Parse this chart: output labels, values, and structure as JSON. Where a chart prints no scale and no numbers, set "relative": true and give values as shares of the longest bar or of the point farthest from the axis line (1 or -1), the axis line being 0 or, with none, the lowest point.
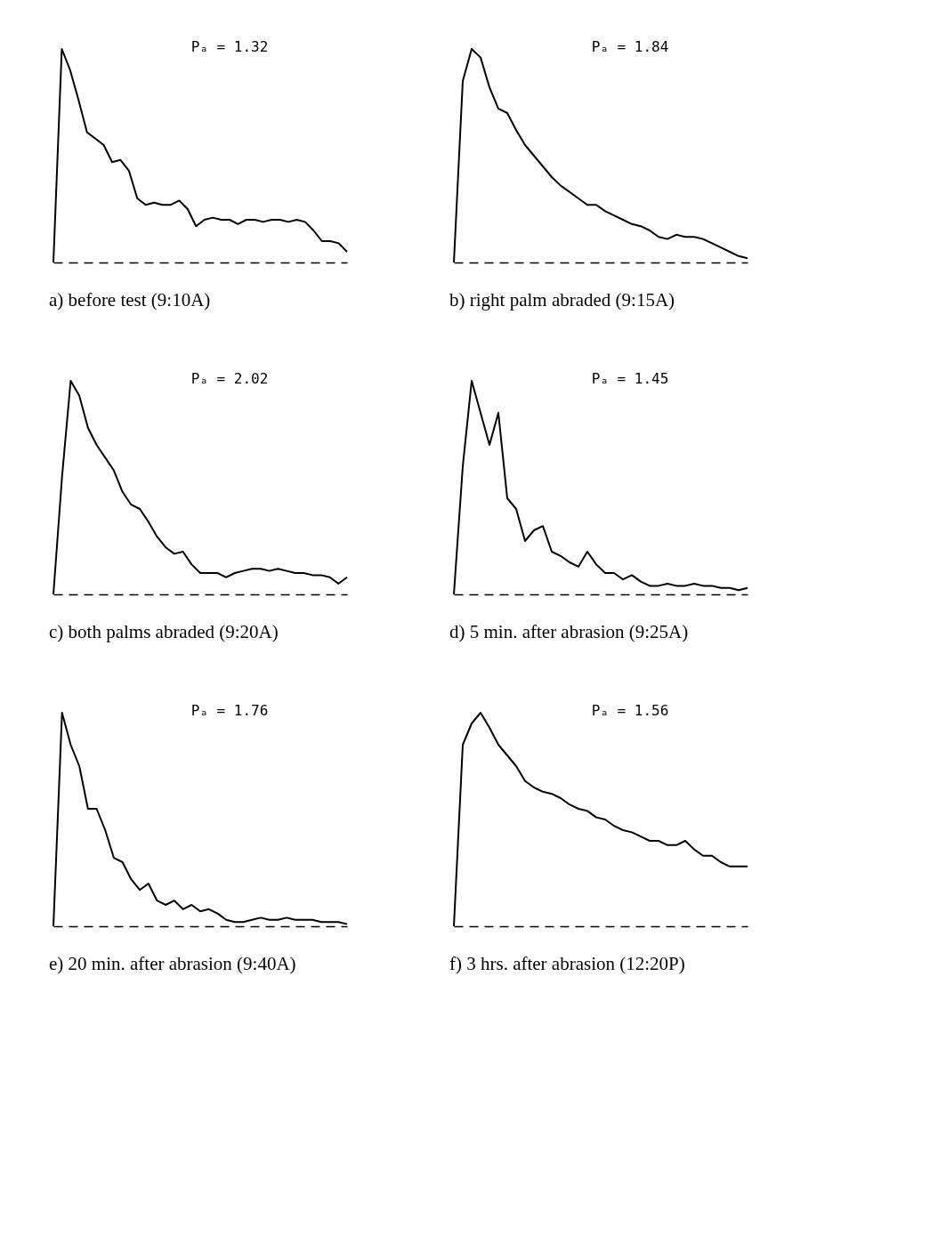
{
  "chart_data": [
    {
      "type": "line",
      "relative": true,
      "title": "a) before test (9:10A)",
      "annotations": [
        "Pₐ = 1.32"
      ],
      "categories": [
        null,
        null,
        null,
        null,
        null,
        null,
        null,
        null,
        null,
        null,
        null,
        null,
        null,
        null,
        null,
        null,
        null,
        null,
        null,
        null,
        null,
        null,
        null,
        null,
        null,
        null,
        null,
        null,
        null,
        null,
        null,
        null,
        null,
        null,
        null,
        null
      ],
      "series": [
        {
          "color": "#000000",
          "values": [
            0,
            1.0,
            0.9,
            0.76,
            0.61,
            0.58,
            0.55,
            0.47,
            0.48,
            0.43,
            0.3,
            0.27,
            0.28,
            0.27,
            0.27,
            0.29,
            0.25,
            0.17,
            0.2,
            0.21,
            0.2,
            0.2,
            0.18,
            0.2,
            0.2,
            0.19,
            0.2,
            0.2,
            0.19,
            0.2,
            0.19,
            0.15,
            0.1,
            0.1,
            0.09,
            0.05
          ]
        }
      ]
    },
    {
      "type": "line",
      "relative": true,
      "title": "b) right palm abraded (9:15A)",
      "annotations": [
        "Pₐ = 1.84"
      ],
      "categories": [
        null,
        null,
        null,
        null,
        null,
        null,
        null,
        null,
        null,
        null,
        null,
        null,
        null,
        null,
        null,
        null,
        null,
        null,
        null,
        null,
        null,
        null,
        null,
        null,
        null,
        null,
        null,
        null,
        null,
        null,
        null,
        null,
        null,
        null
      ],
      "series": [
        {
          "color": "#000000",
          "values": [
            0,
            0.85,
            1.0,
            0.96,
            0.82,
            0.72,
            0.7,
            0.62,
            0.55,
            0.5,
            0.45,
            0.4,
            0.36,
            0.33,
            0.3,
            0.27,
            0.27,
            0.24,
            0.22,
            0.2,
            0.18,
            0.17,
            0.15,
            0.12,
            0.11,
            0.13,
            0.12,
            0.12,
            0.11,
            0.09,
            0.07,
            0.05,
            0.03,
            0.02
          ]
        }
      ]
    },
    {
      "type": "line",
      "relative": true,
      "title": "c) both palms abraded (9:20A)",
      "annotations": [
        "Pₐ = 2.02"
      ],
      "categories": [
        null,
        null,
        null,
        null,
        null,
        null,
        null,
        null,
        null,
        null,
        null,
        null,
        null,
        null,
        null,
        null,
        null,
        null,
        null,
        null,
        null,
        null,
        null,
        null,
        null,
        null,
        null,
        null,
        null,
        null,
        null,
        null,
        null,
        null,
        null
      ],
      "series": [
        {
          "color": "#000000",
          "values": [
            0,
            0.55,
            1.0,
            0.93,
            0.78,
            0.7,
            0.64,
            0.58,
            0.48,
            0.42,
            0.4,
            0.34,
            0.27,
            0.22,
            0.19,
            0.2,
            0.14,
            0.1,
            0.1,
            0.1,
            0.08,
            0.1,
            0.11,
            0.12,
            0.12,
            0.11,
            0.12,
            0.11,
            0.1,
            0.1,
            0.09,
            0.09,
            0.08,
            0.05,
            0.08
          ]
        }
      ]
    },
    {
      "type": "line",
      "relative": true,
      "title": "d) 5 min. after abrasion (9:25A)",
      "annotations": [
        "Pₐ = 1.45"
      ],
      "categories": [
        null,
        null,
        null,
        null,
        null,
        null,
        null,
        null,
        null,
        null,
        null,
        null,
        null,
        null,
        null,
        null,
        null,
        null,
        null,
        null,
        null,
        null,
        null,
        null,
        null,
        null,
        null,
        null,
        null,
        null,
        null,
        null,
        null,
        null
      ],
      "series": [
        {
          "color": "#000000",
          "values": [
            0,
            0.6,
            1.0,
            0.85,
            0.7,
            0.85,
            0.45,
            0.4,
            0.25,
            0.3,
            0.32,
            0.2,
            0.18,
            0.15,
            0.13,
            0.2,
            0.14,
            0.1,
            0.1,
            0.07,
            0.09,
            0.06,
            0.04,
            0.04,
            0.05,
            0.04,
            0.04,
            0.05,
            0.04,
            0.04,
            0.03,
            0.03,
            0.02,
            0.03
          ]
        }
      ]
    },
    {
      "type": "line",
      "relative": true,
      "title": "e) 20 min. after abrasion (9:40A)",
      "annotations": [
        "Pₐ = 1.76"
      ],
      "categories": [
        null,
        null,
        null,
        null,
        null,
        null,
        null,
        null,
        null,
        null,
        null,
        null,
        null,
        null,
        null,
        null,
        null,
        null,
        null,
        null,
        null,
        null,
        null,
        null,
        null,
        null,
        null,
        null,
        null,
        null,
        null,
        null,
        null,
        null,
        null
      ],
      "series": [
        {
          "color": "#000000",
          "values": [
            0,
            1.0,
            0.85,
            0.75,
            0.55,
            0.55,
            0.45,
            0.32,
            0.3,
            0.22,
            0.17,
            0.2,
            0.12,
            0.1,
            0.12,
            0.08,
            0.1,
            0.07,
            0.08,
            0.06,
            0.03,
            0.02,
            0.02,
            0.03,
            0.04,
            0.03,
            0.03,
            0.04,
            0.03,
            0.03,
            0.03,
            0.02,
            0.02,
            0.02,
            0.01
          ]
        }
      ]
    },
    {
      "type": "line",
      "relative": true,
      "title": "f) 3 hrs. after abrasion (12:20P)",
      "annotations": [
        "Pₐ = 1.56"
      ],
      "categories": [
        null,
        null,
        null,
        null,
        null,
        null,
        null,
        null,
        null,
        null,
        null,
        null,
        null,
        null,
        null,
        null,
        null,
        null,
        null,
        null,
        null,
        null,
        null,
        null,
        null,
        null,
        null,
        null,
        null,
        null,
        null,
        null,
        null,
        null
      ],
      "series": [
        {
          "color": "#000000",
          "values": [
            0,
            0.85,
            0.95,
            1.0,
            0.93,
            0.85,
            0.8,
            0.75,
            0.68,
            0.65,
            0.63,
            0.62,
            0.6,
            0.57,
            0.55,
            0.54,
            0.51,
            0.5,
            0.47,
            0.45,
            0.44,
            0.42,
            0.4,
            0.4,
            0.38,
            0.38,
            0.4,
            0.36,
            0.33,
            0.33,
            0.3,
            0.28,
            0.28,
            0.28
          ]
        }
      ]
    }
  ]
}
